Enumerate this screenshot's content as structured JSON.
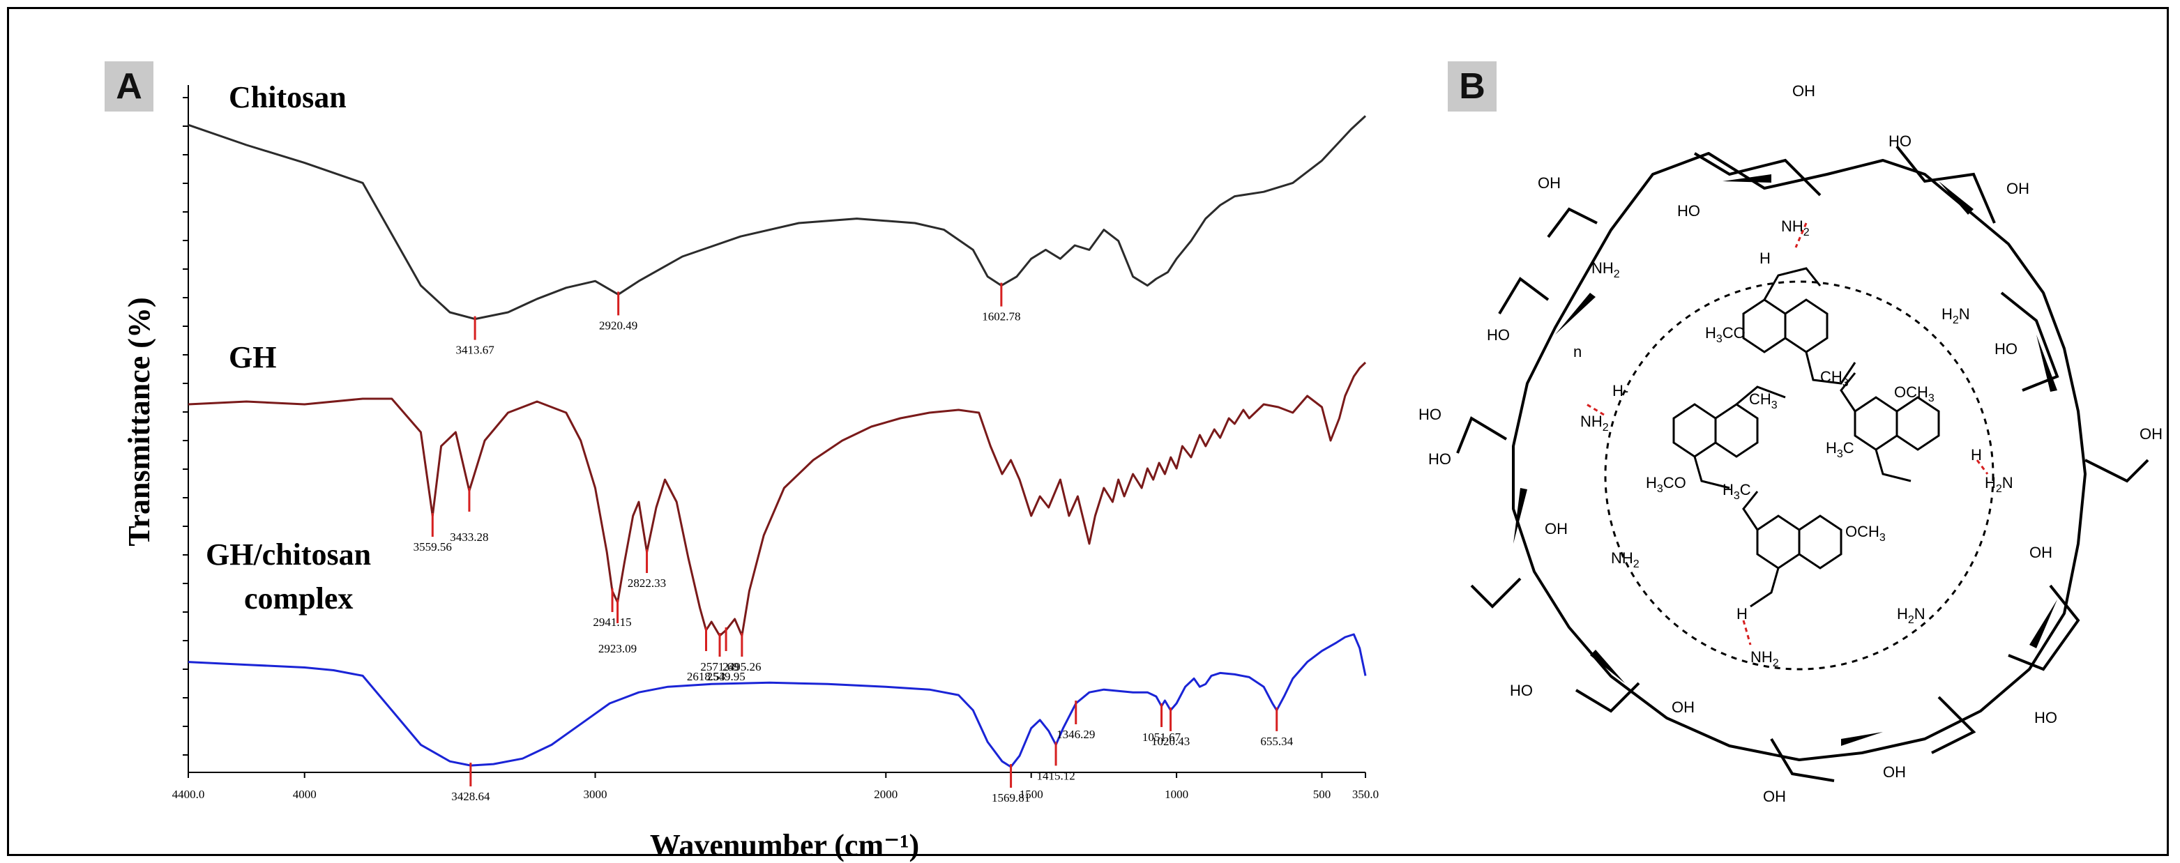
{
  "panels": {
    "a_label": "A",
    "b_label": "B"
  },
  "chart_data": {
    "type": "line",
    "title": "",
    "xlabel": "Wavenumber (cm⁻¹)",
    "ylabel": "Transmittance  (%)",
    "xlim": [
      4400.0,
      350.0
    ],
    "x_ticks": [
      {
        "value": 4400.0,
        "label": "4400.0"
      },
      {
        "value": 4000,
        "label": "4000"
      },
      {
        "value": 3000,
        "label": "3000"
      },
      {
        "value": 2000,
        "label": "2000"
      },
      {
        "value": 1500,
        "label": "1500"
      },
      {
        "value": 1000,
        "label": "1000"
      },
      {
        "value": 500,
        "label": "500"
      },
      {
        "value": 350.0,
        "label": "350.0"
      }
    ],
    "series": [
      {
        "name": "Chitosan",
        "color": "#2b2b2b",
        "points": [
          [
            4400,
            0.06
          ],
          [
            4200,
            0.15
          ],
          [
            4000,
            0.23
          ],
          [
            3800,
            0.32
          ],
          [
            3700,
            0.55
          ],
          [
            3600,
            0.78
          ],
          [
            3500,
            0.9
          ],
          [
            3413.67,
            0.93
          ],
          [
            3300,
            0.9
          ],
          [
            3200,
            0.84
          ],
          [
            3100,
            0.79
          ],
          [
            3000,
            0.76
          ],
          [
            2920.49,
            0.82
          ],
          [
            2850,
            0.76
          ],
          [
            2700,
            0.65
          ],
          [
            2500,
            0.56
          ],
          [
            2300,
            0.5
          ],
          [
            2100,
            0.48
          ],
          [
            1900,
            0.5
          ],
          [
            1800,
            0.53
          ],
          [
            1700,
            0.62
          ],
          [
            1650,
            0.74
          ],
          [
            1602.78,
            0.78
          ],
          [
            1550,
            0.74
          ],
          [
            1500,
            0.66
          ],
          [
            1450,
            0.62
          ],
          [
            1400,
            0.66
          ],
          [
            1350,
            0.6
          ],
          [
            1300,
            0.62
          ],
          [
            1250,
            0.53
          ],
          [
            1200,
            0.58
          ],
          [
            1150,
            0.74
          ],
          [
            1100,
            0.78
          ],
          [
            1070,
            0.75
          ],
          [
            1030,
            0.72
          ],
          [
            1000,
            0.66
          ],
          [
            950,
            0.58
          ],
          [
            900,
            0.48
          ],
          [
            850,
            0.42
          ],
          [
            800,
            0.38
          ],
          [
            700,
            0.36
          ],
          [
            600,
            0.32
          ],
          [
            500,
            0.22
          ],
          [
            400,
            0.08
          ],
          [
            350,
            0.02
          ]
        ]
      },
      {
        "name": "GH",
        "color": "#7a1a1a",
        "points": [
          [
            4400,
            0.15
          ],
          [
            4200,
            0.14
          ],
          [
            4000,
            0.15
          ],
          [
            3800,
            0.13
          ],
          [
            3700,
            0.13
          ],
          [
            3600,
            0.25
          ],
          [
            3559.56,
            0.55
          ],
          [
            3530,
            0.3
          ],
          [
            3480,
            0.25
          ],
          [
            3433.28,
            0.46
          ],
          [
            3380,
            0.28
          ],
          [
            3300,
            0.18
          ],
          [
            3200,
            0.14
          ],
          [
            3100,
            0.18
          ],
          [
            3050,
            0.28
          ],
          [
            3000,
            0.45
          ],
          [
            2960,
            0.68
          ],
          [
            2941.15,
            0.82
          ],
          [
            2923.09,
            0.86
          ],
          [
            2900,
            0.72
          ],
          [
            2870,
            0.55
          ],
          [
            2850,
            0.5
          ],
          [
            2822.33,
            0.68
          ],
          [
            2790,
            0.52
          ],
          [
            2760,
            0.42
          ],
          [
            2720,
            0.5
          ],
          [
            2680,
            0.7
          ],
          [
            2640,
            0.88
          ],
          [
            2618.53,
            0.96
          ],
          [
            2600,
            0.93
          ],
          [
            2571.69,
            0.98
          ],
          [
            2549.95,
            0.96
          ],
          [
            2520,
            0.92
          ],
          [
            2495.26,
            0.98
          ],
          [
            2470,
            0.82
          ],
          [
            2420,
            0.62
          ],
          [
            2350,
            0.45
          ],
          [
            2250,
            0.35
          ],
          [
            2150,
            0.28
          ],
          [
            2050,
            0.23
          ],
          [
            1950,
            0.2
          ],
          [
            1850,
            0.18
          ],
          [
            1750,
            0.17
          ],
          [
            1680,
            0.18
          ],
          [
            1640,
            0.3
          ],
          [
            1600,
            0.4
          ],
          [
            1570,
            0.35
          ],
          [
            1540,
            0.42
          ],
          [
            1500,
            0.55
          ],
          [
            1470,
            0.48
          ],
          [
            1440,
            0.52
          ],
          [
            1400,
            0.42
          ],
          [
            1370,
            0.55
          ],
          [
            1340,
            0.48
          ],
          [
            1300,
            0.65
          ],
          [
            1280,
            0.55
          ],
          [
            1250,
            0.45
          ],
          [
            1220,
            0.5
          ],
          [
            1200,
            0.42
          ],
          [
            1180,
            0.48
          ],
          [
            1150,
            0.4
          ],
          [
            1120,
            0.45
          ],
          [
            1100,
            0.38
          ],
          [
            1080,
            0.42
          ],
          [
            1060,
            0.36
          ],
          [
            1040,
            0.4
          ],
          [
            1020,
            0.34
          ],
          [
            1000,
            0.38
          ],
          [
            980,
            0.3
          ],
          [
            950,
            0.34
          ],
          [
            920,
            0.26
          ],
          [
            900,
            0.3
          ],
          [
            870,
            0.24
          ],
          [
            850,
            0.27
          ],
          [
            820,
            0.2
          ],
          [
            800,
            0.22
          ],
          [
            770,
            0.17
          ],
          [
            750,
            0.2
          ],
          [
            700,
            0.15
          ],
          [
            650,
            0.16
          ],
          [
            600,
            0.18
          ],
          [
            550,
            0.12
          ],
          [
            500,
            0.16
          ],
          [
            470,
            0.28
          ],
          [
            440,
            0.2
          ],
          [
            420,
            0.12
          ],
          [
            390,
            0.05
          ],
          [
            370,
            0.02
          ],
          [
            350,
            0.0
          ]
        ]
      },
      {
        "name": "GH/chitosan complex",
        "color": "#1a24d6",
        "points": [
          [
            4400,
            0.2
          ],
          [
            4200,
            0.22
          ],
          [
            4000,
            0.24
          ],
          [
            3900,
            0.26
          ],
          [
            3800,
            0.3
          ],
          [
            3700,
            0.55
          ],
          [
            3600,
            0.8
          ],
          [
            3500,
            0.92
          ],
          [
            3428.64,
            0.95
          ],
          [
            3350,
            0.94
          ],
          [
            3250,
            0.9
          ],
          [
            3150,
            0.8
          ],
          [
            3050,
            0.65
          ],
          [
            2950,
            0.5
          ],
          [
            2850,
            0.42
          ],
          [
            2750,
            0.38
          ],
          [
            2600,
            0.36
          ],
          [
            2400,
            0.35
          ],
          [
            2200,
            0.36
          ],
          [
            2000,
            0.38
          ],
          [
            1850,
            0.4
          ],
          [
            1750,
            0.44
          ],
          [
            1700,
            0.55
          ],
          [
            1650,
            0.78
          ],
          [
            1600,
            0.92
          ],
          [
            1569.81,
            0.96
          ],
          [
            1540,
            0.88
          ],
          [
            1500,
            0.68
          ],
          [
            1470,
            0.62
          ],
          [
            1440,
            0.7
          ],
          [
            1415.12,
            0.8
          ],
          [
            1390,
            0.68
          ],
          [
            1346.29,
            0.5
          ],
          [
            1300,
            0.42
          ],
          [
            1250,
            0.4
          ],
          [
            1200,
            0.41
          ],
          [
            1150,
            0.42
          ],
          [
            1100,
            0.42
          ],
          [
            1070,
            0.45
          ],
          [
            1051.67,
            0.52
          ],
          [
            1040,
            0.48
          ],
          [
            1020.43,
            0.55
          ],
          [
            1000,
            0.5
          ],
          [
            970,
            0.38
          ],
          [
            940,
            0.32
          ],
          [
            920,
            0.38
          ],
          [
            900,
            0.36
          ],
          [
            880,
            0.3
          ],
          [
            850,
            0.28
          ],
          [
            800,
            0.29
          ],
          [
            750,
            0.31
          ],
          [
            700,
            0.38
          ],
          [
            670,
            0.5
          ],
          [
            655.34,
            0.55
          ],
          [
            630,
            0.45
          ],
          [
            600,
            0.32
          ],
          [
            550,
            0.2
          ],
          [
            500,
            0.12
          ],
          [
            450,
            0.06
          ],
          [
            420,
            0.02
          ],
          [
            390,
            0.0
          ],
          [
            370,
            0.1
          ],
          [
            350,
            0.3
          ]
        ]
      }
    ],
    "peak_labels": [
      {
        "series": "Chitosan",
        "x": 3413.67,
        "label": "3413.67"
      },
      {
        "series": "Chitosan",
        "x": 2920.49,
        "label": "2920.49"
      },
      {
        "series": "Chitosan",
        "x": 1602.78,
        "label": "1602.78"
      },
      {
        "series": "GH",
        "x": 3559.56,
        "label": "3559.56"
      },
      {
        "series": "GH",
        "x": 3433.28,
        "label": "3433.28"
      },
      {
        "series": "GH",
        "x": 2941.15,
        "label": "2941.15"
      },
      {
        "series": "GH",
        "x": 2923.09,
        "label": "2923.09"
      },
      {
        "series": "GH",
        "x": 2822.33,
        "label": "2822.33"
      },
      {
        "series": "GH",
        "x": 2618.53,
        "label": "2618.53"
      },
      {
        "series": "GH",
        "x": 2571.69,
        "label": "2571.69"
      },
      {
        "series": "GH",
        "x": 2549.95,
        "label": "2549.95"
      },
      {
        "series": "GH",
        "x": 2495.26,
        "label": "2495.26"
      },
      {
        "series": "GH/chitosan complex",
        "x": 3428.64,
        "label": "3428.64"
      },
      {
        "series": "GH/chitosan complex",
        "x": 1569.81,
        "label": "1569.81"
      },
      {
        "series": "GH/chitosan complex",
        "x": 1415.12,
        "label": "1415.12"
      },
      {
        "series": "GH/chitosan complex",
        "x": 1346.29,
        "label": "1346.29"
      },
      {
        "series": "GH/chitosan complex",
        "x": 1051.67,
        "label": "1051.67"
      },
      {
        "series": "GH/chitosan complex",
        "x": 1020.43,
        "label": "1020.43"
      },
      {
        "series": "GH/chitosan complex",
        "x": 655.34,
        "label": "655.34"
      }
    ],
    "sample_labels": {
      "chitosan": "Chitosan",
      "gh": "GH",
      "complex_line1": "GH/chitosan",
      "complex_line2": "complex"
    },
    "peak_marker_color": "#d62020"
  },
  "structure": {
    "labels": {
      "oh": "OH",
      "ho": "HO",
      "o": "O",
      "n": "n",
      "nh2": "NH",
      "h2n": "H",
      "sub2": "2",
      "h": "H",
      "h_dash": "H-",
      "h3co": "H",
      "co_end": "CO",
      "och3": "OCH",
      "sub3": "3",
      "ch3": "CH",
      "h3c": "H",
      "n_atom": "N",
      "c_atom": "C",
      "h2": "H"
    },
    "dash_color": "#d62020"
  }
}
